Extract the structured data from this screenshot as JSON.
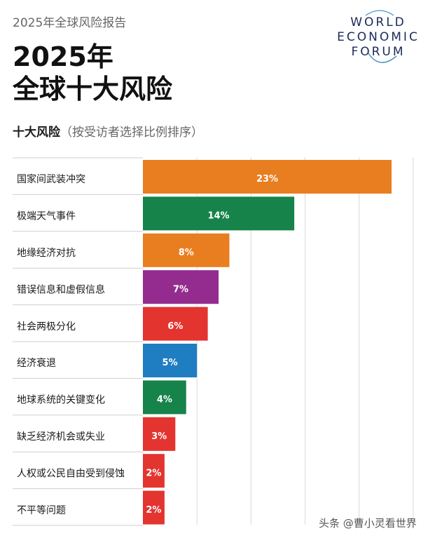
{
  "header": {
    "report_label": "2025年全球风险报告",
    "title_line1": "2025年",
    "title_line2": "全球十大风险",
    "subtitle_main": "十大风险",
    "subtitle_note": "（按受访者选择比例排序）"
  },
  "logo": {
    "line1": "WORLD",
    "line2": "ECONOMIC",
    "line3": "FORUM"
  },
  "watermark": "头条 @曹小灵看世界",
  "chart_data": {
    "type": "bar",
    "orientation": "horizontal",
    "categories": [
      "国家间武装冲突",
      "极端天气事件",
      "地缘经济对抗",
      "错误信息和虚假信息",
      "社会两极分化",
      "经济衰退",
      "地球系统的关键变化",
      "缺乏经济机会或失业",
      "人权或公民自由受到侵蚀",
      "不平等问题"
    ],
    "values": [
      23,
      14,
      8,
      7,
      6,
      5,
      4,
      3,
      2,
      2
    ],
    "data_labels": [
      "23%",
      "14%",
      "8%",
      "7%",
      "6%",
      "5%",
      "4%",
      "3%",
      "2%",
      "2%"
    ],
    "colors": [
      "#E97E20",
      "#16834A",
      "#E97E20",
      "#932C8E",
      "#E3342F",
      "#1F7DC2",
      "#16834A",
      "#E3342F",
      "#E3342F",
      "#E3342F"
    ],
    "xlim": [
      0,
      25
    ],
    "grid": true,
    "legend": "none"
  }
}
